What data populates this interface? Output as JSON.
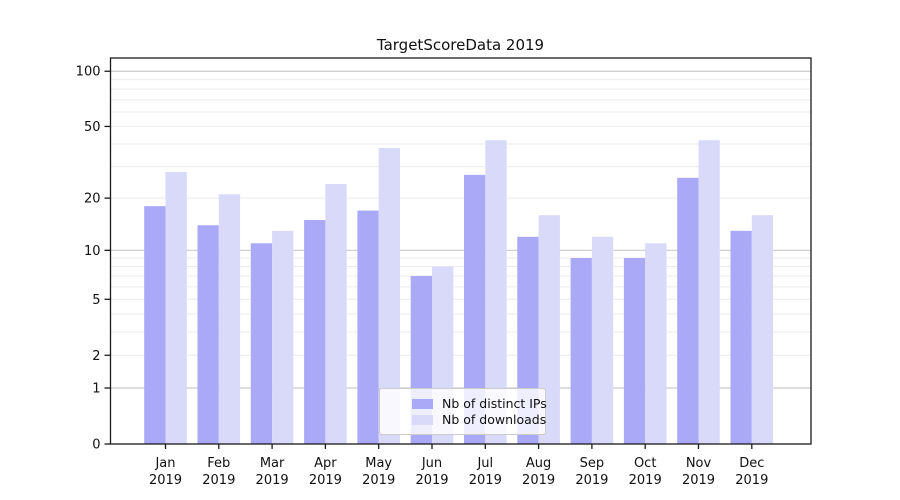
{
  "chart_data": {
    "type": "bar",
    "title": "TargetScoreData 2019",
    "categories": [
      "Jan",
      "Feb",
      "Mar",
      "Apr",
      "May",
      "Jun",
      "Jul",
      "Aug",
      "Sep",
      "Oct",
      "Nov",
      "Dec"
    ],
    "category_year": "2019",
    "series": [
      {
        "name": "Nb of distinct IPs",
        "color": "#a9a9f7",
        "values": [
          18,
          14,
          11,
          15,
          17,
          7,
          27,
          12,
          9,
          9,
          26,
          13
        ]
      },
      {
        "name": "Nb of downloads",
        "color": "#d9d9fa",
        "values": [
          28,
          21,
          13,
          24,
          38,
          8,
          42,
          16,
          12,
          11,
          42,
          16
        ]
      }
    ],
    "yscale": "log1p",
    "ylim": [
      0,
      118
    ],
    "yticks": [
      0,
      1,
      2,
      5,
      10,
      20,
      50,
      100
    ],
    "major_gridlines": [
      1,
      10,
      100
    ],
    "minor_gridlines": [
      2,
      3,
      4,
      5,
      6,
      7,
      8,
      9,
      20,
      30,
      40,
      50,
      60,
      70,
      80,
      90
    ],
    "grid": true,
    "xlabel": "",
    "ylabel": "",
    "legend_position": "lower center"
  },
  "colors": {
    "grid_major": "#c9c9c9",
    "grid_minor": "#ebebeb",
    "spine": "#1a1a1a",
    "tick": "#1a1a1a",
    "text": "#111111"
  }
}
